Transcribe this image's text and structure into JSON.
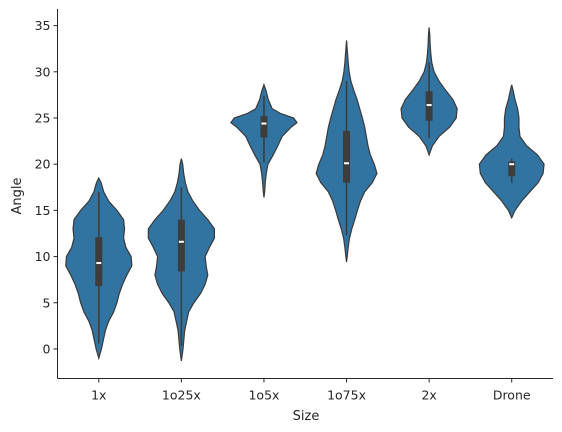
{
  "chart_data": {
    "type": "violin",
    "xlabel": "Size",
    "ylabel": "Angle",
    "ylim": [
      -3.2,
      36.8
    ],
    "yticks": [
      0,
      5,
      10,
      15,
      20,
      25,
      30,
      35
    ],
    "categories": [
      "1x",
      "1o25x",
      "1o5x",
      "1o75x",
      "2x",
      "Drone"
    ],
    "color": "#3274a1",
    "grid": false,
    "distributions": [
      {
        "category": "1x",
        "min": -1.0,
        "max": 18.5,
        "q1": 6.8,
        "median": 9.3,
        "q3": 12.1,
        "whisker_low": 0.6,
        "whisker_high": 17.0,
        "profile": [
          [
            -1.0,
            0.0
          ],
          [
            0.0,
            0.08
          ],
          [
            1.0,
            0.14
          ],
          [
            2.0,
            0.2
          ],
          [
            3.0,
            0.3
          ],
          [
            4.0,
            0.45
          ],
          [
            5.0,
            0.55
          ],
          [
            6.0,
            0.62
          ],
          [
            7.0,
            0.72
          ],
          [
            8.0,
            0.85
          ],
          [
            9.0,
            1.0
          ],
          [
            10.0,
            0.98
          ],
          [
            11.0,
            0.82
          ],
          [
            12.0,
            0.75
          ],
          [
            13.0,
            0.78
          ],
          [
            14.0,
            0.75
          ],
          [
            15.0,
            0.55
          ],
          [
            16.0,
            0.3
          ],
          [
            17.0,
            0.15
          ],
          [
            18.0,
            0.07
          ],
          [
            18.5,
            0.0
          ]
        ]
      },
      {
        "category": "1o25x",
        "min": -1.3,
        "max": 20.6,
        "q1": 8.4,
        "median": 11.6,
        "q3": 14.0,
        "whisker_low": 0.3,
        "whisker_high": 17.5,
        "profile": [
          [
            -1.3,
            0.0
          ],
          [
            0.0,
            0.05
          ],
          [
            2.0,
            0.1
          ],
          [
            4.0,
            0.22
          ],
          [
            5.0,
            0.38
          ],
          [
            6.0,
            0.58
          ],
          [
            7.0,
            0.72
          ],
          [
            8.0,
            0.8
          ],
          [
            9.0,
            0.75
          ],
          [
            10.0,
            0.72
          ],
          [
            11.0,
            0.85
          ],
          [
            12.0,
            1.0
          ],
          [
            13.0,
            1.0
          ],
          [
            14.0,
            0.8
          ],
          [
            15.0,
            0.55
          ],
          [
            16.0,
            0.35
          ],
          [
            17.0,
            0.2
          ],
          [
            18.0,
            0.12
          ],
          [
            19.0,
            0.07
          ],
          [
            20.0,
            0.04
          ],
          [
            20.6,
            0.0
          ]
        ]
      },
      {
        "category": "1o5x",
        "min": 16.4,
        "max": 28.6,
        "q1": 22.9,
        "median": 24.4,
        "q3": 25.2,
        "whisker_low": 20.2,
        "whisker_high": 27.4,
        "profile": [
          [
            16.4,
            0.0
          ],
          [
            17.0,
            0.02
          ],
          [
            18.0,
            0.04
          ],
          [
            19.0,
            0.07
          ],
          [
            20.0,
            0.12
          ],
          [
            21.0,
            0.28
          ],
          [
            22.0,
            0.42
          ],
          [
            23.0,
            0.55
          ],
          [
            24.0,
            0.82
          ],
          [
            24.5,
            1.0
          ],
          [
            25.0,
            0.9
          ],
          [
            25.5,
            0.5
          ],
          [
            26.0,
            0.25
          ],
          [
            27.0,
            0.13
          ],
          [
            28.0,
            0.06
          ],
          [
            28.6,
            0.0
          ]
        ]
      },
      {
        "category": "1o75x",
        "min": 9.4,
        "max": 33.4,
        "q1": 18.0,
        "median": 20.1,
        "q3": 23.6,
        "whisker_low": 12.3,
        "whisker_high": 29.0,
        "profile": [
          [
            9.4,
            0.0
          ],
          [
            10.0,
            0.02
          ],
          [
            11.0,
            0.05
          ],
          [
            12.0,
            0.09
          ],
          [
            13.0,
            0.16
          ],
          [
            14.0,
            0.25
          ],
          [
            15.0,
            0.33
          ],
          [
            16.0,
            0.42
          ],
          [
            17.0,
            0.55
          ],
          [
            18.0,
            0.78
          ],
          [
            19.0,
            0.92
          ],
          [
            20.0,
            0.84
          ],
          [
            21.0,
            0.72
          ],
          [
            22.0,
            0.65
          ],
          [
            23.0,
            0.6
          ],
          [
            24.0,
            0.55
          ],
          [
            25.0,
            0.48
          ],
          [
            26.0,
            0.4
          ],
          [
            27.0,
            0.32
          ],
          [
            28.0,
            0.22
          ],
          [
            29.0,
            0.13
          ],
          [
            30.0,
            0.08
          ],
          [
            31.0,
            0.05
          ],
          [
            32.0,
            0.03
          ],
          [
            33.4,
            0.0
          ]
        ]
      },
      {
        "category": "2x",
        "min": 21.0,
        "max": 34.8,
        "q1": 24.7,
        "median": 26.4,
        "q3": 27.9,
        "whisker_low": 22.8,
        "whisker_high": 31.0,
        "profile": [
          [
            21.0,
            0.0
          ],
          [
            22.0,
            0.1
          ],
          [
            23.0,
            0.3
          ],
          [
            24.0,
            0.62
          ],
          [
            25.0,
            0.82
          ],
          [
            26.0,
            0.85
          ],
          [
            27.0,
            0.72
          ],
          [
            28.0,
            0.5
          ],
          [
            29.0,
            0.3
          ],
          [
            30.0,
            0.15
          ],
          [
            31.0,
            0.08
          ],
          [
            32.0,
            0.05
          ],
          [
            33.0,
            0.03
          ],
          [
            34.0,
            0.02
          ],
          [
            34.8,
            0.0
          ]
        ]
      },
      {
        "category": "Drone",
        "min": 14.2,
        "max": 28.6,
        "q1": 18.7,
        "median": 20.0,
        "q3": 20.3,
        "whisker_low": 18.0,
        "whisker_high": 20.6,
        "profile": [
          [
            14.2,
            0.0
          ],
          [
            15.0,
            0.1
          ],
          [
            16.0,
            0.3
          ],
          [
            17.0,
            0.55
          ],
          [
            18.0,
            0.8
          ],
          [
            19.0,
            0.95
          ],
          [
            20.0,
            0.98
          ],
          [
            21.0,
            0.78
          ],
          [
            22.0,
            0.45
          ],
          [
            23.0,
            0.25
          ],
          [
            24.0,
            0.22
          ],
          [
            25.0,
            0.22
          ],
          [
            26.0,
            0.18
          ],
          [
            27.0,
            0.1
          ],
          [
            28.0,
            0.04
          ],
          [
            28.6,
            0.0
          ]
        ]
      }
    ]
  }
}
